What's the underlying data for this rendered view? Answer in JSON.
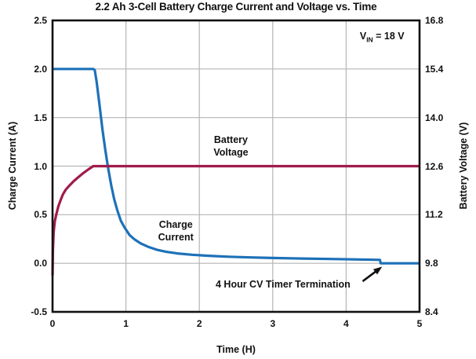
{
  "figure": {
    "title": "2.2 Ah 3-Cell Battery Charge Current and Voltage vs. Time",
    "background": "#ffffff"
  },
  "chart_data": {
    "type": "line",
    "title": "2.2 Ah 3-Cell Battery Charge Current and Voltage vs. Time",
    "grid": true,
    "legend": "none (inline text labels)",
    "x_axis": {
      "label": "Time (H)",
      "range": [
        0,
        5
      ],
      "tick_labels": [
        "0",
        "1",
        "2",
        "3",
        "4",
        "5"
      ],
      "tick_values": [
        0,
        1,
        2,
        3,
        4,
        5
      ]
    },
    "y_axis_left": {
      "label": "Charge Current (A)",
      "range": [
        -0.5,
        2.5
      ],
      "tick_labels": [
        "2.5",
        "2.0",
        "1.5",
        "1.0",
        "0.5",
        "0.0",
        "-0.5"
      ],
      "tick_values": [
        2.5,
        2.0,
        1.5,
        1.0,
        0.5,
        0.0,
        -0.5
      ]
    },
    "y_axis_right": {
      "label": "Battery Voltage (V)",
      "range": [
        8.4,
        16.8
      ],
      "tick_labels": [
        "16.8",
        "15.4",
        "14.0",
        "12.6",
        "11.2",
        "9.8",
        "8.4"
      ],
      "tick_values": [
        16.8,
        15.4,
        14.0,
        12.6,
        11.2,
        9.8,
        8.4
      ]
    },
    "series": [
      {
        "name": "Charge Current",
        "axis": "left",
        "units": "A",
        "color": "#1d71b8",
        "points": [
          [
            0,
            2.0
          ],
          [
            0.555,
            2.0
          ],
          [
            0.575,
            1.99
          ],
          [
            0.6,
            1.87
          ],
          [
            0.64,
            1.63
          ],
          [
            0.68,
            1.38
          ],
          [
            0.72,
            1.16
          ],
          [
            0.76,
            0.97
          ],
          [
            0.8,
            0.8
          ],
          [
            0.84,
            0.66
          ],
          [
            0.88,
            0.55
          ],
          [
            0.93,
            0.44
          ],
          [
            0.98,
            0.37
          ],
          [
            1.05,
            0.29
          ],
          [
            1.12,
            0.245
          ],
          [
            1.2,
            0.205
          ],
          [
            1.3,
            0.17
          ],
          [
            1.42,
            0.14
          ],
          [
            1.55,
            0.118
          ],
          [
            1.7,
            0.102
          ],
          [
            1.9,
            0.088
          ],
          [
            2.1,
            0.078
          ],
          [
            2.4,
            0.068
          ],
          [
            2.7,
            0.06
          ],
          [
            3.0,
            0.055
          ],
          [
            3.4,
            0.049
          ],
          [
            3.8,
            0.044
          ],
          [
            4.1,
            0.04
          ],
          [
            4.4,
            0.036
          ],
          [
            4.46,
            0.035
          ],
          [
            4.47,
            0.0
          ],
          [
            5.0,
            0.0
          ]
        ]
      },
      {
        "name": "Battery Voltage",
        "axis": "right",
        "units": "V",
        "color": "#a01b4c",
        "points": [
          [
            0,
            9.45
          ],
          [
            0.005,
            10.2
          ],
          [
            0.015,
            10.7
          ],
          [
            0.03,
            11.0
          ],
          [
            0.05,
            11.2
          ],
          [
            0.08,
            11.45
          ],
          [
            0.11,
            11.62
          ],
          [
            0.14,
            11.78
          ],
          [
            0.18,
            11.92
          ],
          [
            0.23,
            12.04
          ],
          [
            0.29,
            12.17
          ],
          [
            0.35,
            12.28
          ],
          [
            0.42,
            12.4
          ],
          [
            0.49,
            12.51
          ],
          [
            0.555,
            12.6
          ],
          [
            5.0,
            12.6
          ]
        ]
      }
    ],
    "annotations": {
      "vin": {
        "base": "V",
        "sub": "IN",
        "rest": " = 18 V",
        "x": 4.49,
        "y": 2.33
      },
      "battery_voltage": {
        "line1": "Battery",
        "line2": "Voltage",
        "x": 2.43,
        "y": 1.21
      },
      "charge_current": {
        "line1": "Charge",
        "line2": "Current",
        "x": 1.68,
        "y": 0.33
      },
      "termination": {
        "text": "4 Hour CV Timer Termination",
        "x": 3.14,
        "y": -0.22,
        "arrow_from": [
          4.225,
          -0.185
        ],
        "arrow_to": [
          4.49,
          -0.035
        ]
      }
    },
    "colors": {
      "grid": "#b5b5b5",
      "frame": "#111111",
      "text": "#111111"
    }
  }
}
